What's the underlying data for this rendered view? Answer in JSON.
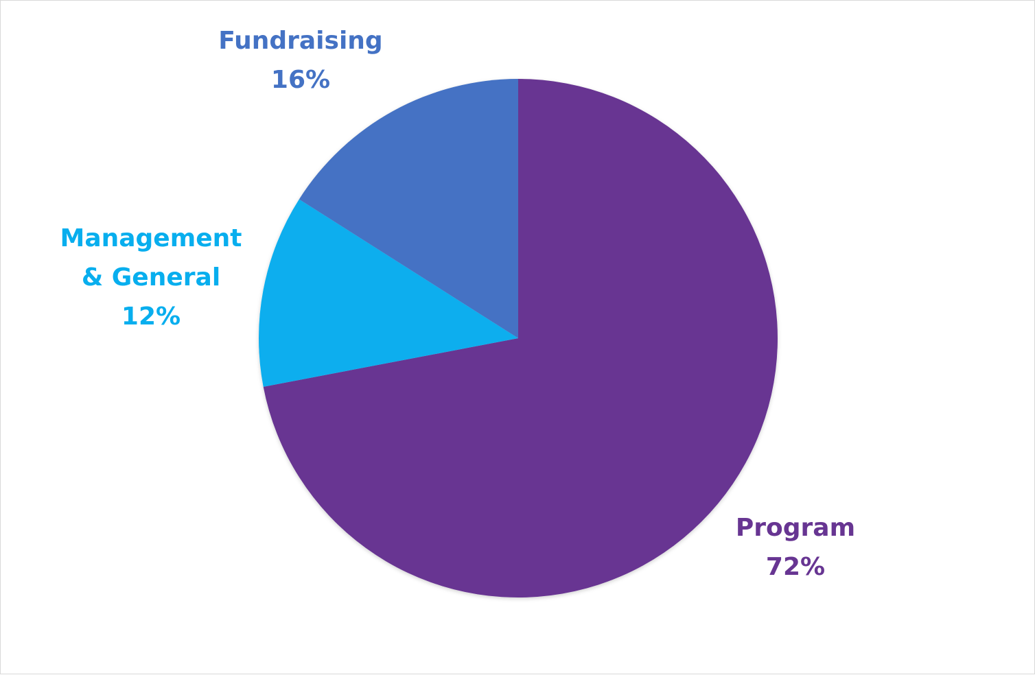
{
  "chart_data": {
    "type": "pie",
    "title": "",
    "start_angle_deg": 0,
    "direction": "clockwise",
    "slices": [
      {
        "name": "Program",
        "value": 72,
        "label": "72%",
        "color": "#673592"
      },
      {
        "name": "Management & General",
        "name_lines": [
          "Management",
          "& General"
        ],
        "value": 12,
        "label": "12%",
        "color": "#08aeee"
      },
      {
        "name": "Fundraising",
        "value": 16,
        "label": "16%",
        "color": "#4472c4"
      }
    ],
    "legend": "none"
  }
}
